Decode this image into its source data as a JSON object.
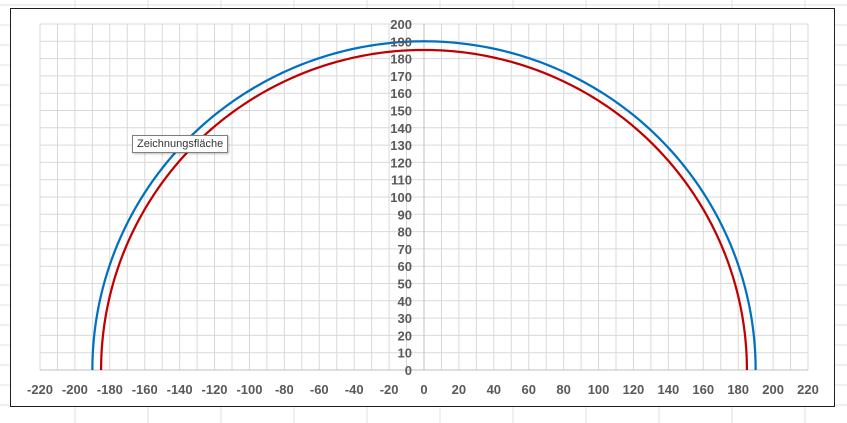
{
  "tooltip": "Zeichnungsfläche",
  "chart_data": {
    "type": "line",
    "x_ticks": [
      -220,
      -200,
      -180,
      -160,
      -140,
      -120,
      -100,
      -80,
      -60,
      -40,
      -20,
      0,
      20,
      40,
      60,
      80,
      100,
      120,
      140,
      160,
      180,
      200,
      220
    ],
    "y_ticks": [
      0,
      10,
      20,
      30,
      40,
      50,
      60,
      70,
      80,
      90,
      100,
      110,
      120,
      130,
      140,
      150,
      160,
      170,
      180,
      190,
      200
    ],
    "xlim": [
      -220,
      220
    ],
    "ylim": [
      0,
      200
    ],
    "x_minor_step": 10,
    "grid": true,
    "series": [
      {
        "color": "#0070C0",
        "shape": "upper semicircle",
        "center": [
          0,
          0
        ],
        "radius": 190
      },
      {
        "color": "#C00000",
        "shape": "upper semicircle",
        "center": [
          0,
          0
        ],
        "radius": 185
      }
    ]
  }
}
